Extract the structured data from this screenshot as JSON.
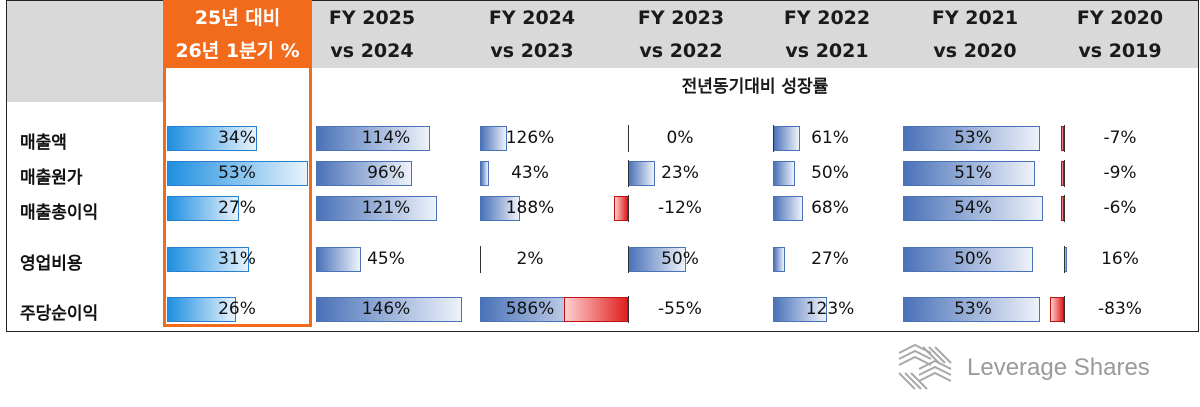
{
  "header": {
    "highlight": [
      "25년 대비",
      "26년 1분기 %"
    ],
    "columns": [
      [
        "FY 2025",
        "vs 2024"
      ],
      [
        "FY 2024",
        "vs 2023"
      ],
      [
        "FY 2023",
        "vs 2022"
      ],
      [
        "FY 2022",
        "vs 2021"
      ],
      [
        "FY 2021",
        "vs 2020"
      ],
      [
        "FY 2020",
        "vs 2019"
      ]
    ],
    "subtitle": "전년동기대비 성장률"
  },
  "chart_data": {
    "type": "table",
    "columns": [
      "25년 대비 26년 1분기 %",
      "FY 2025 vs 2024",
      "FY 2024 vs 2023",
      "FY 2023 vs 2022",
      "FY 2022 vs 2021",
      "FY 2021 vs 2020",
      "FY 2020 vs 2019"
    ],
    "rows": [
      {
        "name": "매출액",
        "values": [
          34,
          114,
          126,
          0,
          61,
          53,
          -7
        ]
      },
      {
        "name": "매출원가",
        "values": [
          53,
          96,
          43,
          23,
          50,
          51,
          -9
        ]
      },
      {
        "name": "매출총이익",
        "values": [
          27,
          121,
          188,
          -12,
          68,
          54,
          -6
        ]
      },
      {
        "name": "영업비용",
        "values": [
          31,
          45,
          2,
          50,
          27,
          50,
          16
        ]
      },
      {
        "name": "주당순이익",
        "values": [
          26,
          146,
          586,
          -55,
          123,
          53,
          -83
        ]
      }
    ],
    "unit": "%"
  },
  "colors": {
    "accent": "#f26a1b",
    "positive": "#4a72b8",
    "negative": "#e02020",
    "highlight_bar": "#1e8fe0"
  },
  "logo": {
    "text": "Leverage Shares"
  }
}
